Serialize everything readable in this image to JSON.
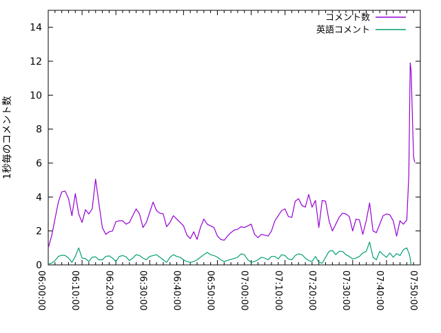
{
  "figure": {
    "background": "#ffffff",
    "border_color": "#000000",
    "text_color": "#000000"
  },
  "chart_data": {
    "type": "line",
    "title": "",
    "xlabel": "",
    "ylabel": "1秒毎のコメント数",
    "x_unit": "minutes after 06:00:00",
    "xlim_minutes": [
      0,
      110
    ],
    "ylim": [
      0,
      15
    ],
    "grid": false,
    "legend_position": "top-right inside",
    "x_tick_labels": [
      "06:00:00",
      "06:10:00",
      "06:20:00",
      "06:30:00",
      "06:40:00",
      "06:50:00",
      "07:00:00",
      "07:10:00",
      "07:20:00",
      "07:30:00",
      "07:40:00",
      "07:50:00"
    ],
    "x_major_tick_minutes": 10,
    "x_minor_tick_minutes": 2,
    "y_tick_labels": [
      "0",
      "2",
      "4",
      "6",
      "8",
      "10",
      "12",
      "14"
    ],
    "y_tick_values": [
      0,
      2,
      4,
      6,
      8,
      10,
      12,
      14
    ],
    "series": [
      {
        "name": "コメント数",
        "color": "#9400d3",
        "points": [
          [
            0,
            1.0
          ],
          [
            1,
            1.7
          ],
          [
            2,
            2.7
          ],
          [
            3,
            3.7
          ],
          [
            4,
            4.3
          ],
          [
            5,
            4.35
          ],
          [
            6,
            3.9
          ],
          [
            7,
            2.9
          ],
          [
            8,
            4.2
          ],
          [
            9,
            3.0
          ],
          [
            10,
            2.5
          ],
          [
            11,
            3.25
          ],
          [
            12,
            3.0
          ],
          [
            13,
            3.3
          ],
          [
            14,
            5.05
          ],
          [
            15,
            3.6
          ],
          [
            16,
            2.2
          ],
          [
            17,
            1.8
          ],
          [
            18,
            1.95
          ],
          [
            19,
            2.0
          ],
          [
            20,
            2.55
          ],
          [
            21,
            2.6
          ],
          [
            22,
            2.6
          ],
          [
            23,
            2.4
          ],
          [
            24,
            2.5
          ],
          [
            25,
            2.9
          ],
          [
            26,
            3.3
          ],
          [
            27,
            3.0
          ],
          [
            28,
            2.2
          ],
          [
            29,
            2.5
          ],
          [
            30,
            3.1
          ],
          [
            31,
            3.7
          ],
          [
            32,
            3.2
          ],
          [
            33,
            3.05
          ],
          [
            34,
            3.0
          ],
          [
            35,
            2.25
          ],
          [
            36,
            2.5
          ],
          [
            37,
            2.9
          ],
          [
            38,
            2.7
          ],
          [
            39,
            2.5
          ],
          [
            40,
            2.3
          ],
          [
            41,
            1.75
          ],
          [
            42,
            1.55
          ],
          [
            43,
            1.95
          ],
          [
            44,
            1.5
          ],
          [
            45,
            2.2
          ],
          [
            46,
            2.7
          ],
          [
            47,
            2.4
          ],
          [
            48,
            2.3
          ],
          [
            49,
            2.2
          ],
          [
            50,
            1.7
          ],
          [
            51,
            1.5
          ],
          [
            52,
            1.45
          ],
          [
            53,
            1.7
          ],
          [
            54,
            1.9
          ],
          [
            55,
            2.05
          ],
          [
            56,
            2.1
          ],
          [
            57,
            2.25
          ],
          [
            58,
            2.2
          ],
          [
            59,
            2.3
          ],
          [
            60,
            2.4
          ],
          [
            61,
            1.8
          ],
          [
            62,
            1.6
          ],
          [
            63,
            1.8
          ],
          [
            64,
            1.75
          ],
          [
            65,
            1.7
          ],
          [
            66,
            2.0
          ],
          [
            67,
            2.6
          ],
          [
            68,
            2.9
          ],
          [
            69,
            3.2
          ],
          [
            70,
            3.3
          ],
          [
            71,
            2.85
          ],
          [
            72,
            2.8
          ],
          [
            73,
            3.75
          ],
          [
            74,
            3.9
          ],
          [
            75,
            3.5
          ],
          [
            76,
            3.4
          ],
          [
            77,
            4.15
          ],
          [
            78,
            3.4
          ],
          [
            79,
            3.8
          ],
          [
            80,
            2.2
          ],
          [
            81,
            3.8
          ],
          [
            82,
            3.75
          ],
          [
            83,
            2.6
          ],
          [
            84,
            2.0
          ],
          [
            85,
            2.4
          ],
          [
            86,
            2.8
          ],
          [
            87,
            3.05
          ],
          [
            88,
            3.0
          ],
          [
            89,
            2.85
          ],
          [
            90,
            2.0
          ],
          [
            91,
            2.7
          ],
          [
            92,
            2.65
          ],
          [
            93,
            1.8
          ],
          [
            94,
            2.6
          ],
          [
            95,
            3.65
          ],
          [
            96,
            2.0
          ],
          [
            97,
            1.9
          ],
          [
            98,
            2.4
          ],
          [
            99,
            2.9
          ],
          [
            100,
            3.0
          ],
          [
            101,
            2.95
          ],
          [
            102,
            2.6
          ],
          [
            103,
            1.7
          ],
          [
            104,
            2.6
          ],
          [
            105,
            2.4
          ],
          [
            106,
            2.65
          ],
          [
            106.6,
            5.3
          ],
          [
            107,
            11.9
          ],
          [
            107.3,
            11.4
          ],
          [
            107.7,
            8.4
          ],
          [
            108,
            6.4
          ],
          [
            108.3,
            6.05
          ]
        ]
      },
      {
        "name": "英語コメント",
        "color": "#009e73",
        "points": [
          [
            0,
            0.05
          ],
          [
            1,
            0.1
          ],
          [
            2,
            0.25
          ],
          [
            3,
            0.5
          ],
          [
            4,
            0.57
          ],
          [
            5,
            0.55
          ],
          [
            6,
            0.4
          ],
          [
            7,
            0.15
          ],
          [
            8,
            0.5
          ],
          [
            9,
            1.0
          ],
          [
            10,
            0.4
          ],
          [
            11,
            0.37
          ],
          [
            12,
            0.2
          ],
          [
            13,
            0.45
          ],
          [
            14,
            0.47
          ],
          [
            15,
            0.3
          ],
          [
            16,
            0.3
          ],
          [
            17,
            0.5
          ],
          [
            18,
            0.53
          ],
          [
            19,
            0.4
          ],
          [
            20,
            0.2
          ],
          [
            21,
            0.5
          ],
          [
            22,
            0.55
          ],
          [
            23,
            0.48
          ],
          [
            24,
            0.25
          ],
          [
            25,
            0.4
          ],
          [
            26,
            0.6
          ],
          [
            27,
            0.55
          ],
          [
            28,
            0.4
          ],
          [
            29,
            0.3
          ],
          [
            30,
            0.5
          ],
          [
            31,
            0.55
          ],
          [
            32,
            0.6
          ],
          [
            33,
            0.45
          ],
          [
            34,
            0.3
          ],
          [
            35,
            0.15
          ],
          [
            36,
            0.45
          ],
          [
            37,
            0.6
          ],
          [
            38,
            0.5
          ],
          [
            39,
            0.45
          ],
          [
            40,
            0.3
          ],
          [
            41,
            0.2
          ],
          [
            42,
            0.15
          ],
          [
            43,
            0.2
          ],
          [
            44,
            0.3
          ],
          [
            45,
            0.45
          ],
          [
            46,
            0.6
          ],
          [
            47,
            0.74
          ],
          [
            48,
            0.6
          ],
          [
            49,
            0.55
          ],
          [
            50,
            0.45
          ],
          [
            51,
            0.3
          ],
          [
            52,
            0.2
          ],
          [
            53,
            0.26
          ],
          [
            54,
            0.32
          ],
          [
            55,
            0.38
          ],
          [
            56,
            0.45
          ],
          [
            57,
            0.65
          ],
          [
            58,
            0.6
          ],
          [
            59,
            0.3
          ],
          [
            60,
            0.15
          ],
          [
            61,
            0.2
          ],
          [
            62,
            0.3
          ],
          [
            63,
            0.45
          ],
          [
            64,
            0.4
          ],
          [
            65,
            0.3
          ],
          [
            66,
            0.5
          ],
          [
            67,
            0.5
          ],
          [
            68,
            0.35
          ],
          [
            69,
            0.6
          ],
          [
            70,
            0.55
          ],
          [
            71,
            0.35
          ],
          [
            72,
            0.3
          ],
          [
            73,
            0.55
          ],
          [
            74,
            0.65
          ],
          [
            75,
            0.6
          ],
          [
            76,
            0.4
          ],
          [
            77,
            0.25
          ],
          [
            78,
            0.2
          ],
          [
            79,
            0.5
          ],
          [
            80,
            0.15
          ],
          [
            81,
            0.1
          ],
          [
            82,
            0.45
          ],
          [
            83,
            0.8
          ],
          [
            84,
            0.85
          ],
          [
            85,
            0.6
          ],
          [
            86,
            0.8
          ],
          [
            87,
            0.8
          ],
          [
            88,
            0.6
          ],
          [
            89,
            0.5
          ],
          [
            90,
            0.35
          ],
          [
            91,
            0.4
          ],
          [
            92,
            0.5
          ],
          [
            93,
            0.7
          ],
          [
            94,
            0.8
          ],
          [
            95,
            1.35
          ],
          [
            96,
            0.45
          ],
          [
            97,
            0.3
          ],
          [
            98,
            0.8
          ],
          [
            99,
            0.6
          ],
          [
            100,
            0.45
          ],
          [
            101,
            0.7
          ],
          [
            102,
            0.45
          ],
          [
            103,
            0.67
          ],
          [
            104,
            0.55
          ],
          [
            105,
            0.9
          ],
          [
            106,
            1.0
          ],
          [
            106.8,
            0.6
          ],
          [
            107.3,
            0.0
          ]
        ]
      }
    ]
  }
}
